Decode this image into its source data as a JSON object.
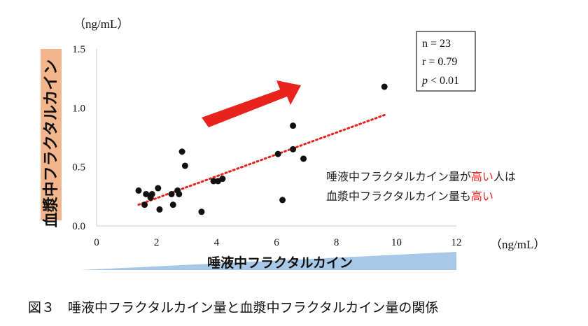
{
  "chart_data": {
    "type": "scatter",
    "y_unit": "（ng/mL）",
    "x_unit": "（ng/mL）",
    "ylabel": "血漿中フラクタルカイン",
    "xlabel": "唾液中フラクタルカイン",
    "xlim": [
      0,
      12
    ],
    "ylim": [
      0,
      1.5
    ],
    "x_ticks": [
      "0",
      "2",
      "4",
      "6",
      "8",
      "10",
      "12"
    ],
    "y_ticks": [
      "0.0",
      "0.5",
      "1.0",
      "1.5"
    ],
    "grid": false,
    "points": [
      {
        "x": 1.4,
        "y": 0.3
      },
      {
        "x": 1.6,
        "y": 0.18
      },
      {
        "x": 1.65,
        "y": 0.27
      },
      {
        "x": 1.8,
        "y": 0.24
      },
      {
        "x": 1.85,
        "y": 0.27
      },
      {
        "x": 2.05,
        "y": 0.32
      },
      {
        "x": 2.1,
        "y": 0.14
      },
      {
        "x": 2.5,
        "y": 0.27
      },
      {
        "x": 2.55,
        "y": 0.18
      },
      {
        "x": 2.7,
        "y": 0.3
      },
      {
        "x": 2.75,
        "y": 0.27
      },
      {
        "x": 2.85,
        "y": 0.63
      },
      {
        "x": 2.95,
        "y": 0.51
      },
      {
        "x": 3.5,
        "y": 0.12
      },
      {
        "x": 3.9,
        "y": 0.38
      },
      {
        "x": 4.05,
        "y": 0.38
      },
      {
        "x": 4.2,
        "y": 0.4
      },
      {
        "x": 6.05,
        "y": 0.61
      },
      {
        "x": 6.2,
        "y": 0.22
      },
      {
        "x": 6.55,
        "y": 0.65
      },
      {
        "x": 6.55,
        "y": 0.85
      },
      {
        "x": 6.9,
        "y": 0.57
      },
      {
        "x": 9.6,
        "y": 1.18
      }
    ],
    "trendline": {
      "x": [
        1.4,
        9.6
      ],
      "y": [
        0.18,
        0.94
      ],
      "color": "#e8231d",
      "style": "dotted"
    },
    "stats": {
      "n": "n = 23",
      "r": "r = 0.79",
      "p_symbol": "p",
      "p_rest": " < 0.01"
    },
    "annotation": {
      "line1": [
        {
          "text": "唾液中フラクタルカイン量が",
          "color": "#222222"
        },
        {
          "text": "高い",
          "color": "#e8231d"
        },
        {
          "text": "人は",
          "color": "#222222"
        }
      ],
      "line2": [
        {
          "text": "血漿中フラクタルカイン量も",
          "color": "#222222"
        },
        {
          "text": "高い",
          "color": "#e8231d"
        }
      ]
    },
    "colors": {
      "arrow": "#e8231d",
      "x_wedge": "#a8c8e8",
      "y_wedge": "#f3b58c",
      "points": "#111111"
    }
  },
  "caption": "図３　唾液中フラクタルカイン量と血漿中フラクタルカイン量の関係"
}
